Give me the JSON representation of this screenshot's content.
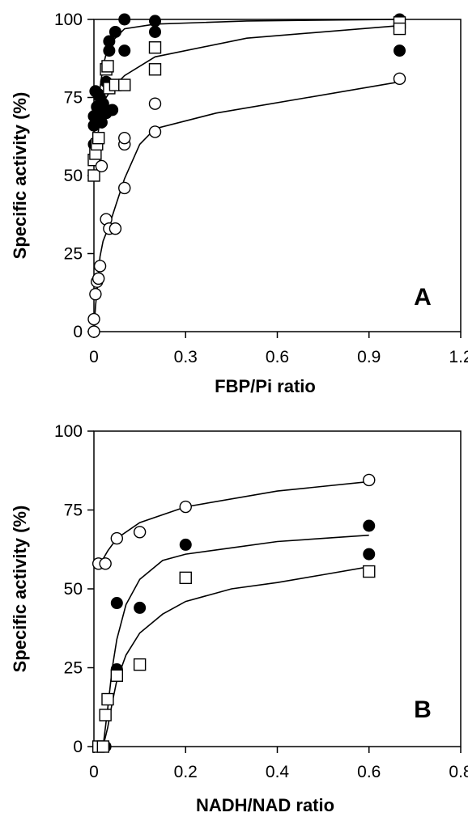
{
  "chart_data": [
    {
      "type": "scatter",
      "panel_label": "A",
      "xlabel": "FBP/Pi ratio",
      "ylabel": "Specific activity (%)",
      "xlim": [
        0,
        1.2
      ],
      "ylim": [
        0,
        100
      ],
      "xticks": [
        "0",
        "0.3",
        "0.6",
        "0.9",
        "1.2"
      ],
      "yticks": [
        "0",
        "25",
        "50",
        "75",
        "100"
      ],
      "series": [
        {
          "marker": "filled-circle",
          "points": [
            [
              0,
              60
            ],
            [
              0,
              66
            ],
            [
              0,
              69
            ],
            [
              0.005,
              77
            ],
            [
              0.01,
              72
            ],
            [
              0.01,
              68
            ],
            [
              0.015,
              76
            ],
            [
              0.02,
              75
            ],
            [
              0.02,
              70
            ],
            [
              0.025,
              67
            ],
            [
              0.03,
              73
            ],
            [
              0.04,
              80
            ],
            [
              0.04,
              70
            ],
            [
              0.05,
              93
            ],
            [
              0.05,
              90
            ],
            [
              0.06,
              71
            ],
            [
              0.07,
              96
            ],
            [
              0.1,
              100
            ],
            [
              0.1,
              90
            ],
            [
              0.2,
              99.5
            ],
            [
              0.2,
              96
            ],
            [
              1.0,
              100
            ],
            [
              1.0,
              90
            ]
          ],
          "curve": [
            [
              0,
              63
            ],
            [
              0.005,
              68
            ],
            [
              0.01,
              72
            ],
            [
              0.02,
              78
            ],
            [
              0.03,
              85
            ],
            [
              0.04,
              89
            ],
            [
              0.05,
              92
            ],
            [
              0.07,
              94
            ],
            [
              0.1,
              97
            ],
            [
              0.2,
              98.5
            ],
            [
              0.5,
              99.5
            ],
            [
              1.0,
              100
            ]
          ]
        },
        {
          "marker": "open-square",
          "points": [
            [
              0,
              50
            ],
            [
              0,
              55
            ],
            [
              0.005,
              57
            ],
            [
              0.01,
              60
            ],
            [
              0.015,
              62
            ],
            [
              0.04,
              84
            ],
            [
              0.045,
              85
            ],
            [
              0.05,
              78
            ],
            [
              0.07,
              79
            ],
            [
              0.1,
              79
            ],
            [
              0.2,
              91
            ],
            [
              0.2,
              84
            ],
            [
              1.0,
              99
            ],
            [
              1.0,
              97
            ]
          ],
          "curve": [
            [
              0,
              53
            ],
            [
              0.005,
              58
            ],
            [
              0.01,
              61
            ],
            [
              0.02,
              68
            ],
            [
              0.03,
              72
            ],
            [
              0.04,
              75
            ],
            [
              0.06,
              78
            ],
            [
              0.1,
              82
            ],
            [
              0.2,
              88
            ],
            [
              0.5,
              94
            ],
            [
              1.0,
              98
            ]
          ]
        },
        {
          "marker": "open-circle",
          "points": [
            [
              0,
              0
            ],
            [
              0,
              4
            ],
            [
              0.005,
              12
            ],
            [
              0.01,
              16
            ],
            [
              0.015,
              17
            ],
            [
              0.02,
              21
            ],
            [
              0.025,
              53
            ],
            [
              0.04,
              36
            ],
            [
              0.05,
              33
            ],
            [
              0.07,
              33
            ],
            [
              0.1,
              46
            ],
            [
              0.1,
              60
            ],
            [
              0.1,
              62
            ],
            [
              0.2,
              64
            ],
            [
              0.2,
              73
            ],
            [
              1.0,
              81
            ]
          ],
          "curve": [
            [
              0,
              0
            ],
            [
              0.005,
              8
            ],
            [
              0.01,
              13
            ],
            [
              0.015,
              18
            ],
            [
              0.02,
              24
            ],
            [
              0.03,
              29
            ],
            [
              0.05,
              34
            ],
            [
              0.07,
              40
            ],
            [
              0.1,
              49
            ],
            [
              0.15,
              60
            ],
            [
              0.2,
              65
            ],
            [
              0.4,
              70
            ],
            [
              0.7,
              75
            ],
            [
              1.0,
              80
            ]
          ]
        }
      ]
    },
    {
      "type": "scatter",
      "panel_label": "B",
      "xlabel": "NADH/NAD ratio",
      "ylabel": "Specific activity (%)",
      "xlim": [
        0,
        0.8
      ],
      "ylim": [
        0,
        100
      ],
      "xticks": [
        "0",
        "0.2",
        "0.4",
        "0.6",
        "0.8"
      ],
      "yticks": [
        "0",
        "25",
        "50",
        "75",
        "100"
      ],
      "series": [
        {
          "marker": "open-circle",
          "points": [
            [
              0.01,
              58
            ],
            [
              0.025,
              58
            ],
            [
              0.05,
              66
            ],
            [
              0.1,
              68
            ],
            [
              0.2,
              76
            ],
            [
              0.6,
              84.5
            ]
          ],
          "curve": [
            [
              0.01,
              57
            ],
            [
              0.03,
              62
            ],
            [
              0.05,
              66
            ],
            [
              0.1,
              71
            ],
            [
              0.2,
              76
            ],
            [
              0.4,
              81
            ],
            [
              0.6,
              84
            ]
          ]
        },
        {
          "marker": "filled-circle",
          "points": [
            [
              0.01,
              0
            ],
            [
              0.015,
              0
            ],
            [
              0.025,
              0
            ],
            [
              0.05,
              45.5
            ],
            [
              0.05,
              24.5
            ],
            [
              0.1,
              44
            ],
            [
              0.2,
              64
            ],
            [
              0.6,
              70
            ],
            [
              0.6,
              61
            ]
          ],
          "curve": [
            [
              0.02,
              0
            ],
            [
              0.03,
              12
            ],
            [
              0.04,
              25
            ],
            [
              0.05,
              34
            ],
            [
              0.07,
              45
            ],
            [
              0.1,
              53
            ],
            [
              0.15,
              59
            ],
            [
              0.2,
              61
            ],
            [
              0.3,
              63
            ],
            [
              0.4,
              65
            ],
            [
              0.5,
              66
            ],
            [
              0.6,
              67
            ]
          ]
        },
        {
          "marker": "open-square",
          "points": [
            [
              0.01,
              0
            ],
            [
              0.02,
              0
            ],
            [
              0.025,
              10
            ],
            [
              0.03,
              15
            ],
            [
              0.05,
              22.5
            ],
            [
              0.1,
              26
            ],
            [
              0.2,
              53.5
            ],
            [
              0.6,
              55.5
            ]
          ],
          "curve": [
            [
              0.02,
              0
            ],
            [
              0.03,
              6
            ],
            [
              0.04,
              14
            ],
            [
              0.05,
              21
            ],
            [
              0.07,
              29
            ],
            [
              0.1,
              36
            ],
            [
              0.15,
              42
            ],
            [
              0.2,
              46
            ],
            [
              0.3,
              50
            ],
            [
              0.4,
              52
            ],
            [
              0.5,
              54.5
            ],
            [
              0.6,
              57
            ]
          ]
        }
      ]
    }
  ]
}
